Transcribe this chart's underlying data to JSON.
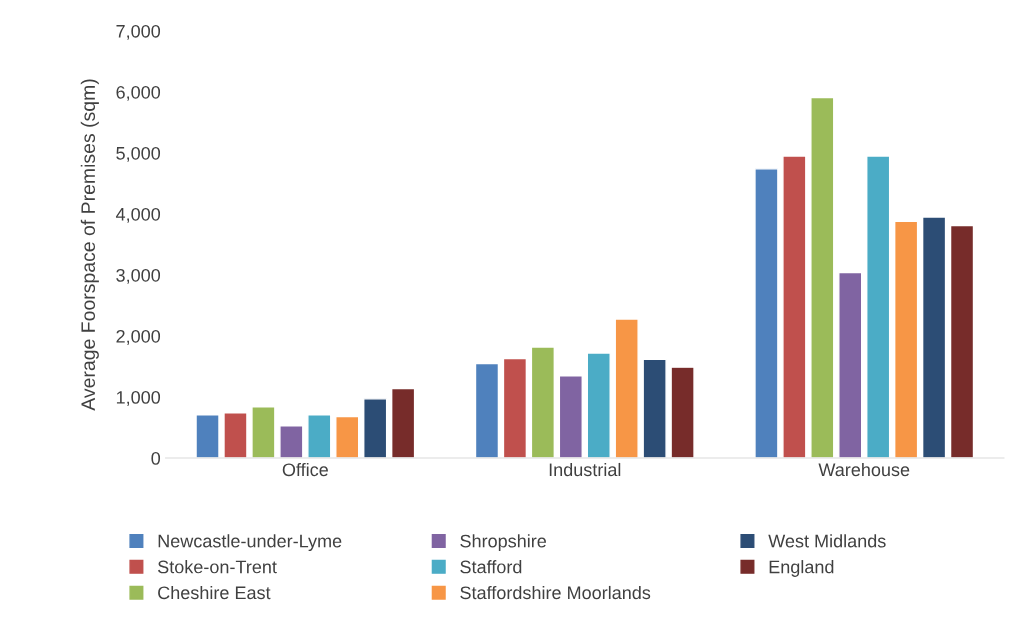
{
  "chart_data": {
    "type": "bar",
    "ylabel": "Average Foorspace of Premises (sqm)",
    "categories": [
      "Office",
      "Industrial",
      "Warehouse"
    ],
    "series": [
      {
        "name": "Newcastle-under-Lyme",
        "color": "#4f81bd",
        "values": [
          710,
          1550,
          4740
        ]
      },
      {
        "name": "Stoke-on-Trent",
        "color": "#c0504d",
        "values": [
          740,
          1630,
          4950
        ]
      },
      {
        "name": "Cheshire East",
        "color": "#9bbb59",
        "values": [
          840,
          1820,
          5910
        ]
      },
      {
        "name": "Shropshire",
        "color": "#8064a2",
        "values": [
          530,
          1350,
          3040
        ]
      },
      {
        "name": "Stafford",
        "color": "#4bacc6",
        "values": [
          710,
          1720,
          4950
        ]
      },
      {
        "name": "Staffordshire Moorlands",
        "color": "#f79646",
        "values": [
          680,
          2280,
          3880
        ]
      },
      {
        "name": "West Midlands",
        "color": "#2c4d75",
        "values": [
          970,
          1620,
          3950
        ]
      },
      {
        "name": "England",
        "color": "#772c2a",
        "values": [
          1140,
          1490,
          3810
        ]
      }
    ],
    "ylim": [
      0,
      7000
    ],
    "yticks": [
      {
        "value": 0,
        "label": "0"
      },
      {
        "value": 1000,
        "label": "1,000"
      },
      {
        "value": 2000,
        "label": "2,000"
      },
      {
        "value": 3000,
        "label": "3,000"
      },
      {
        "value": 4000,
        "label": "4,000"
      },
      {
        "value": 5000,
        "label": "5,000"
      },
      {
        "value": 6000,
        "label": "6,000"
      },
      {
        "value": 7000,
        "label": "7,000"
      }
    ],
    "grid": false,
    "legend": "bottom"
  }
}
